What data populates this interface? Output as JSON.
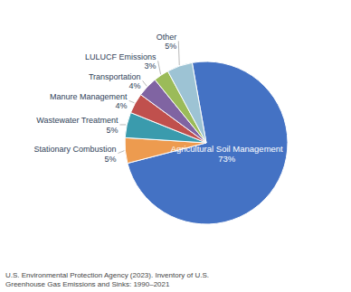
{
  "chart_data": {
    "type": "pie",
    "categories": [
      "Agricultural Soil Management",
      "Stationary Combustion",
      "Wastewater Treatment",
      "Manure Management",
      "Transportation",
      "LULUCF Emissions",
      "Other"
    ],
    "values": [
      73,
      5,
      5,
      4,
      4,
      3,
      5
    ],
    "colors": [
      "#4472C4",
      "#ED9B4F",
      "#3A9BAD",
      "#C0504D",
      "#8064A2",
      "#9BBB59",
      "#9DC3D4"
    ],
    "data_labels": true,
    "value_labels": [
      "73%",
      "5%",
      "5%",
      "4%",
      "4%",
      "3%",
      "5%"
    ],
    "footnote": "U.S. Environmental Protection Agency (2023). Inventory of U.S.\nGreenhouse Gas Emissions and Sinks: 1990–2021"
  }
}
